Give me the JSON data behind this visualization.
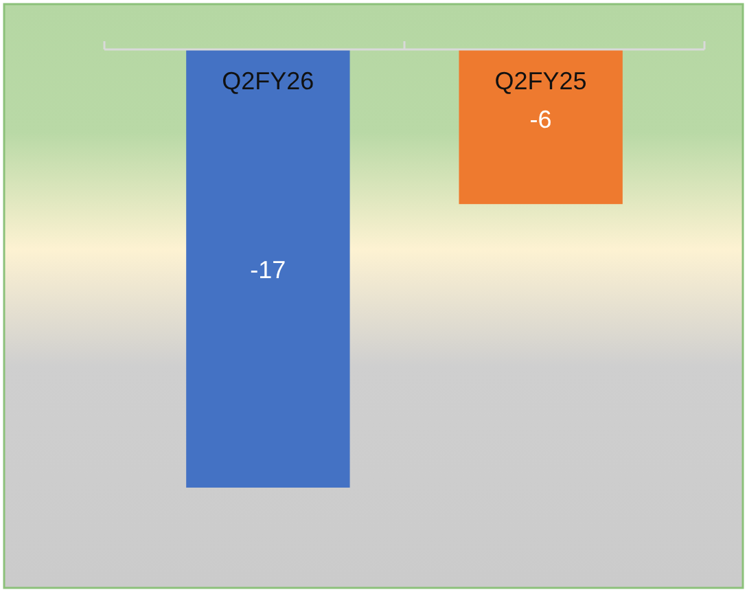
{
  "chart_data": {
    "type": "bar",
    "categories": [
      "Q2FY26",
      "Q2FY25"
    ],
    "values": [
      -17,
      -6
    ],
    "colors": [
      "#4472c4",
      "#ee7a2f"
    ],
    "data_labels": true
  }
}
